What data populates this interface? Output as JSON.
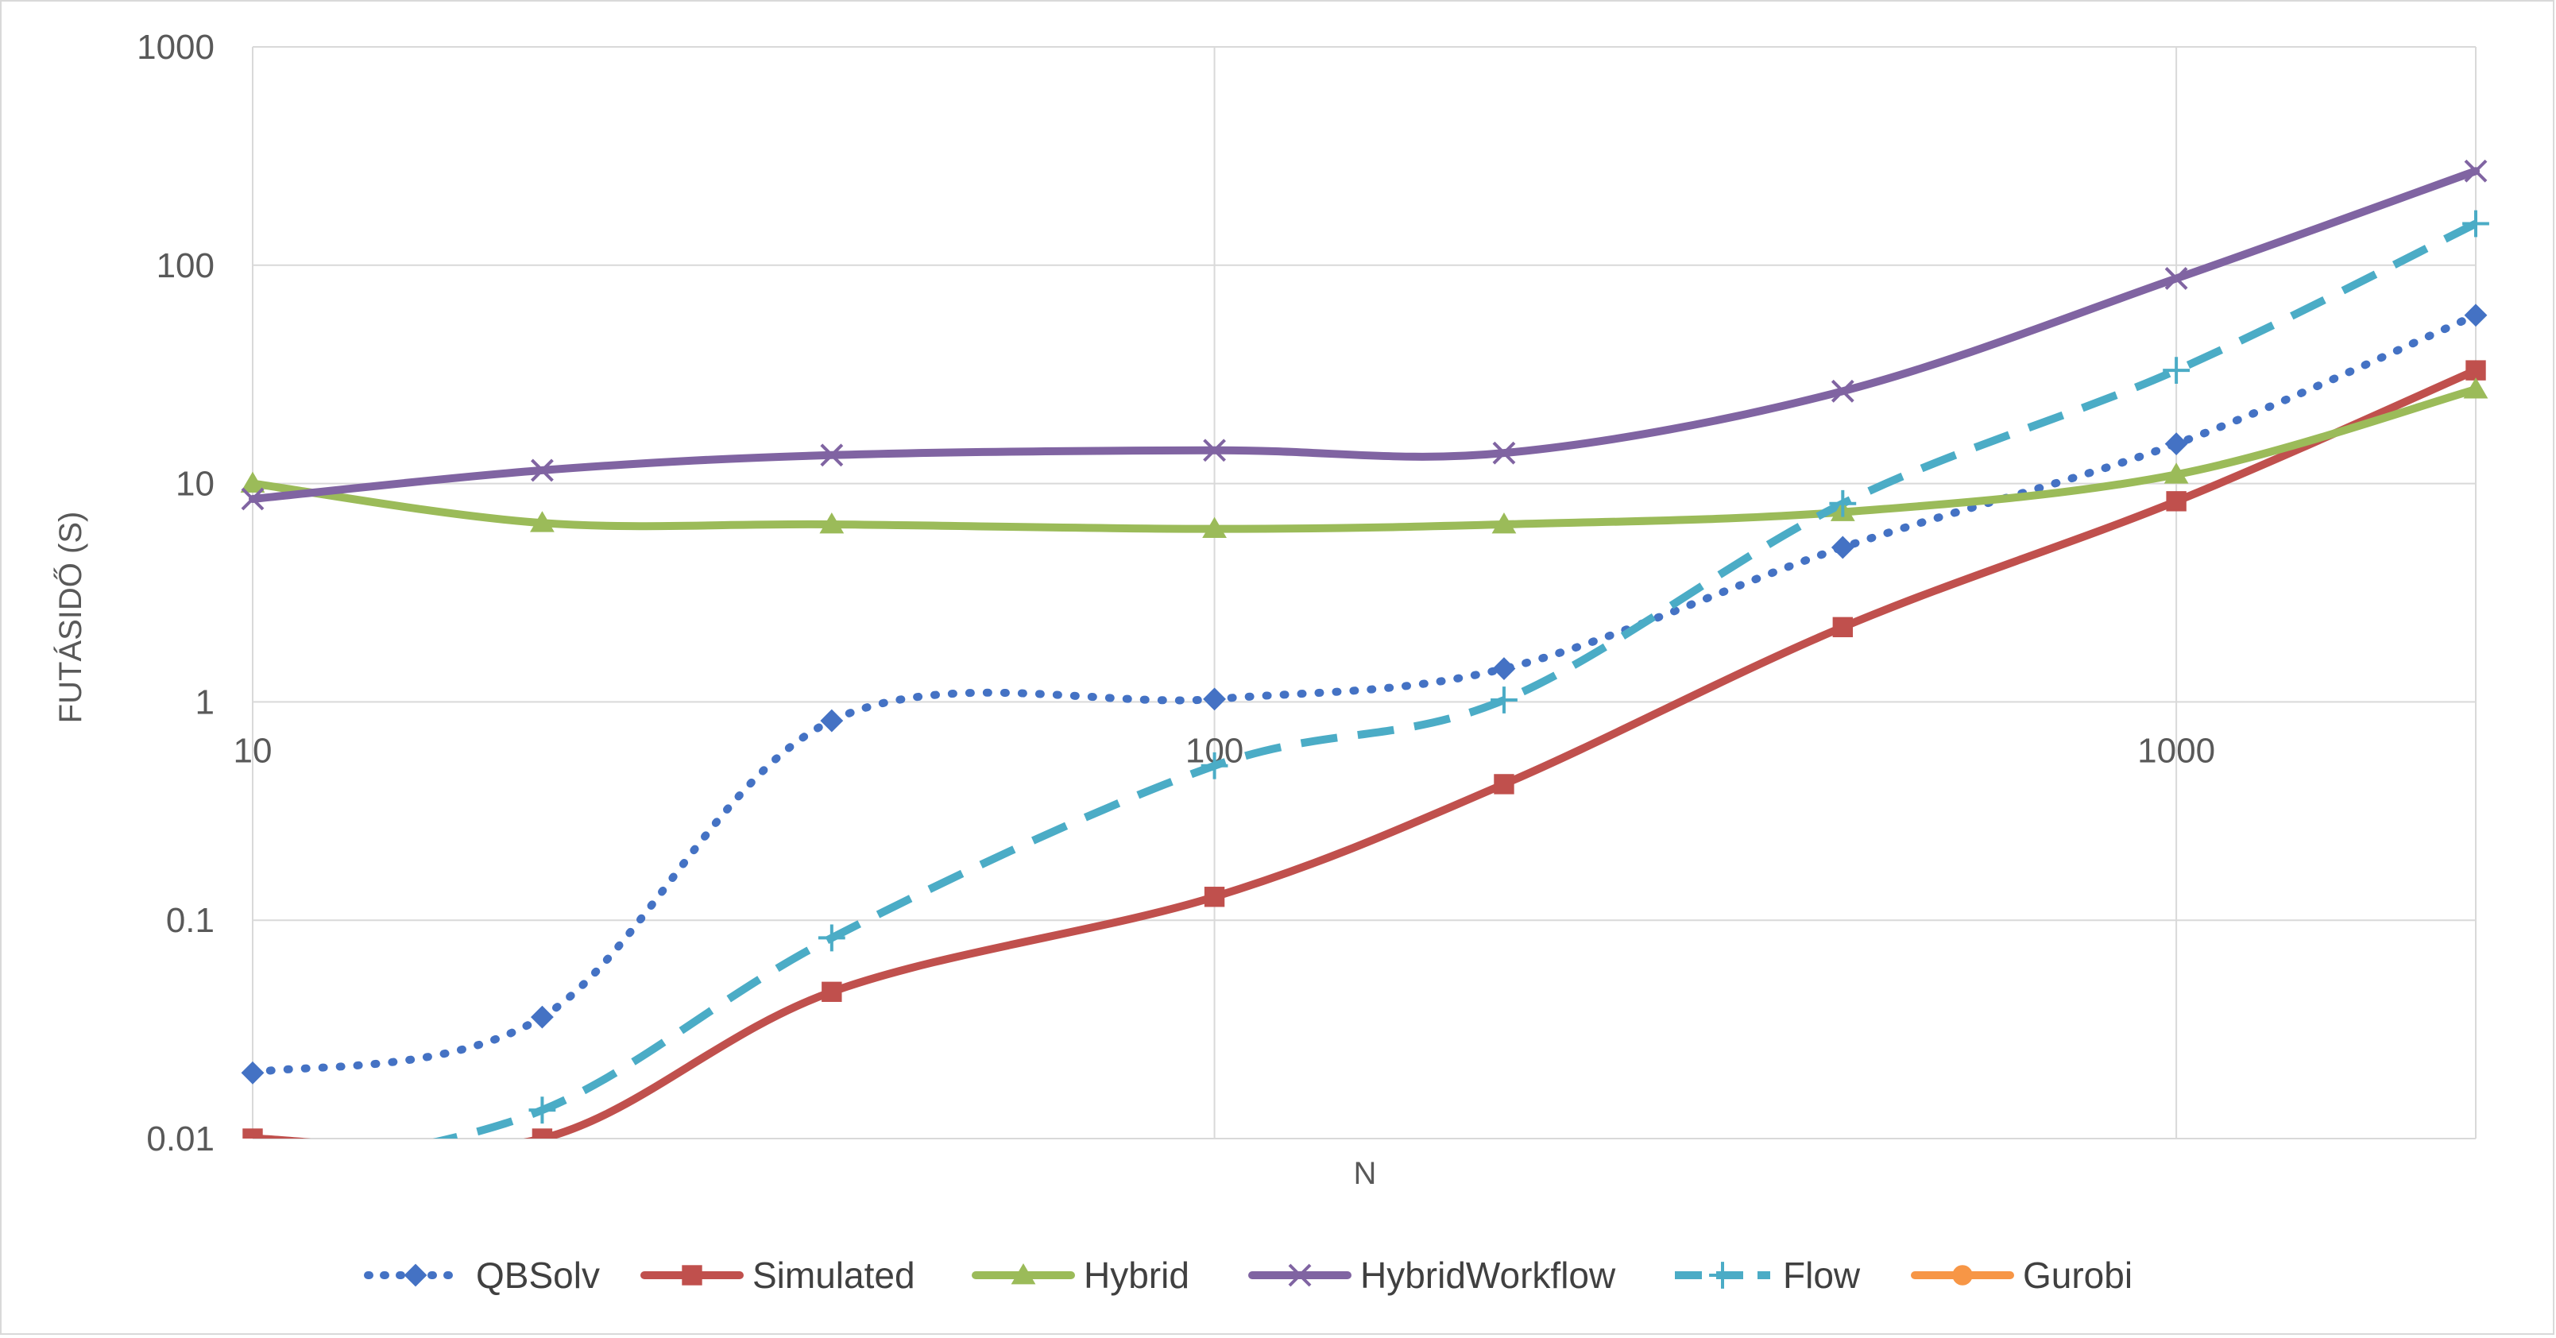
{
  "chart_data": {
    "type": "line",
    "title": "",
    "xlabel": "N",
    "ylabel": "FUTÁSIDŐ (S)",
    "x_scale": "log",
    "y_scale": "log",
    "xlim": [
      10,
      2048
    ],
    "ylim": [
      0.01,
      1000
    ],
    "x_ticks": [
      "10",
      "100",
      "1000"
    ],
    "y_ticks": [
      "0.01",
      "0.1",
      "1",
      "10",
      "100",
      "1000"
    ],
    "grid": "vertical major gridlines and horizontal major gridlines",
    "legend_position": "bottom",
    "series": [
      {
        "name": "QBSolv",
        "color": "#4472c4",
        "style": "dotted",
        "marker": "diamond",
        "x": [
          10,
          20,
          40,
          100,
          200,
          450,
          1000,
          2048
        ],
        "y": [
          0.02,
          0.036,
          0.82,
          1.03,
          1.42,
          5.1,
          15.2,
          59
        ]
      },
      {
        "name": "Simulated",
        "color": "#c0504d",
        "style": "solid",
        "marker": "square",
        "x": [
          10,
          20,
          40,
          100,
          200,
          450,
          1000,
          2048
        ],
        "y": [
          0.01,
          0.01,
          0.047,
          0.128,
          0.42,
          2.2,
          8.3,
          33
        ]
      },
      {
        "name": "Hybrid",
        "color": "#9bbb59",
        "style": "solid",
        "marker": "triangle",
        "x": [
          10,
          20,
          40,
          100,
          200,
          450,
          1000,
          2048
        ],
        "y": [
          10,
          6.6,
          6.5,
          6.2,
          6.5,
          7.4,
          11,
          27
        ]
      },
      {
        "name": "HybridWorkflow",
        "color": "#8064a2",
        "style": "solid",
        "marker": "x",
        "x": [
          10,
          20,
          40,
          100,
          200,
          450,
          1000,
          2048
        ],
        "y": [
          8.5,
          11.5,
          13.5,
          14.2,
          13.8,
          26.5,
          87,
          270
        ]
      },
      {
        "name": "Flow",
        "color": "#4bacc6",
        "style": "dashed",
        "marker": "plus",
        "x": [
          10,
          20,
          40,
          100,
          200,
          450,
          1000,
          2048
        ],
        "y": [
          0.0068,
          0.0135,
          0.083,
          0.51,
          1.02,
          8.1,
          33,
          155
        ]
      },
      {
        "name": "Gurobi",
        "color": "#f79646",
        "style": "solid",
        "marker": "circle",
        "x": [],
        "y": []
      }
    ]
  }
}
